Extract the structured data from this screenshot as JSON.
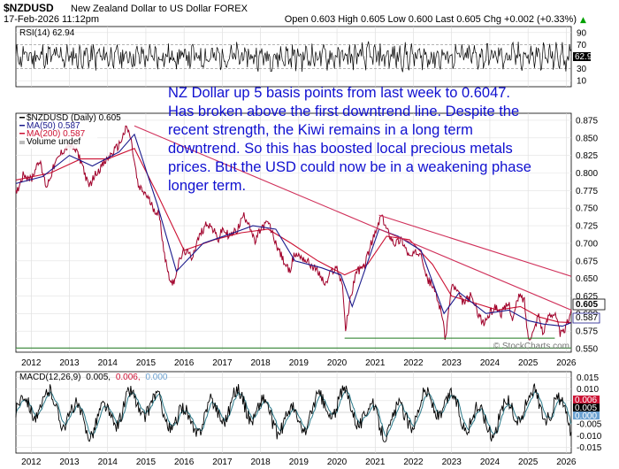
{
  "header": {
    "symbol": "$NZDUSD",
    "description": "New Zealand Dollar to US Dollar  FOREX",
    "date": "17-Feb-2026 11:12pm",
    "ohlc": "Open 0.603  High 0.605  Low 0.600  Last 0.605  Chg +0.002 (+0.33%)",
    "chg_arrow": "▲"
  },
  "rsi": {
    "label": "RSI(14) 62.94",
    "value": 62.94,
    "ticks": [
      "90",
      "70",
      "50",
      "30",
      "10"
    ],
    "ylim": [
      0,
      100
    ],
    "current_label": "62.94",
    "line_color": "#000000"
  },
  "annotation_lines": [
    "NZ Dollar up 5 basis points from last week to 0.6047.",
    "Has broken above the first downtrend line. Despite the",
    "recent strength, the Kiwi remains in a long term",
    "downtrend. So this has boosted local precious metals",
    "prices. But the USD could now be in a weakening phase",
    "longer term."
  ],
  "legend": {
    "price": "$NZDUSD (Daily) 0.605",
    "ma50": "MA(50) 0.587",
    "ma200": "MA(200) 0.587",
    "volume": "Volume undef"
  },
  "price_axis": {
    "ticks": [
      "0.875",
      "0.850",
      "0.825",
      "0.800",
      "0.775",
      "0.750",
      "0.725",
      "0.700",
      "0.675",
      "0.650",
      "0.625",
      "0.600",
      "0.575",
      "0.550"
    ],
    "badges": [
      "0.605",
      "0.587"
    ]
  },
  "years": [
    "2012",
    "2013",
    "2014",
    "2015",
    "2016",
    "2017",
    "2018",
    "2019",
    "2020",
    "2021",
    "2022",
    "2023",
    "2024",
    "2025",
    "2026"
  ],
  "watermark": "© StockCharts.com",
  "macd": {
    "label_prefix": "MACD(12,26,9)",
    "v1": "0.005,",
    "v2": "0.006,",
    "v3": "0.000",
    "ticks": [
      "0.015",
      "0.010",
      "0.005",
      "0.000",
      "-0.005",
      "-0.010",
      "-0.015"
    ],
    "badges": [
      "0.006",
      "0.005",
      "0.000"
    ]
  },
  "colors": {
    "price": "#a0002a",
    "ma50": "#1a1a8c",
    "ma200": "#cc1133",
    "trendline": "#d0305a",
    "support": "#1f7a1f",
    "note": "#1010d0",
    "macd_signal": "#2a7a8a"
  },
  "chart_data": {
    "type": "line",
    "title": "$NZDUSD  New Zealand Dollar to US Dollar  FOREX",
    "x_range": [
      2011.6,
      2026.13
    ],
    "y_range": [
      0.545,
      0.885
    ],
    "series": [
      {
        "name": "$NZDUSD (Daily)",
        "x": [
          2011.6,
          2011.8,
          2012.0,
          2012.2,
          2012.4,
          2012.6,
          2012.8,
          2013.0,
          2013.2,
          2013.35,
          2013.5,
          2013.7,
          2014.0,
          2014.3,
          2014.5,
          2014.6,
          2014.8,
          2015.0,
          2015.2,
          2015.35,
          2015.5,
          2015.6,
          2015.7,
          2015.85,
          2016.0,
          2016.2,
          2016.4,
          2016.6,
          2016.75,
          2016.9,
          2017.0,
          2017.2,
          2017.4,
          2017.55,
          2017.7,
          2017.85,
          2018.0,
          2018.2,
          2018.4,
          2018.6,
          2018.75,
          2018.9,
          2019.1,
          2019.3,
          2019.5,
          2019.7,
          2019.85,
          2020.0,
          2020.15,
          2020.22,
          2020.35,
          2020.5,
          2020.7,
          2020.9,
          2021.05,
          2021.15,
          2021.3,
          2021.5,
          2021.7,
          2021.9,
          2022.05,
          2022.2,
          2022.35,
          2022.5,
          2022.6,
          2022.75,
          2022.83,
          2023.0,
          2023.1,
          2023.3,
          2023.5,
          2023.7,
          2023.83,
          2024.0,
          2024.15,
          2024.3,
          2024.5,
          2024.6,
          2024.75,
          2024.9,
          2025.0,
          2025.15,
          2025.27,
          2025.4,
          2025.55,
          2025.7,
          2025.85,
          2025.95,
          2026.05,
          2026.13
        ],
        "y": [
          0.77,
          0.8,
          0.79,
          0.82,
          0.78,
          0.81,
          0.83,
          0.84,
          0.83,
          0.81,
          0.78,
          0.8,
          0.82,
          0.84,
          0.865,
          0.85,
          0.78,
          0.77,
          0.75,
          0.74,
          0.68,
          0.655,
          0.64,
          0.67,
          0.69,
          0.68,
          0.71,
          0.73,
          0.72,
          0.705,
          0.72,
          0.71,
          0.72,
          0.74,
          0.73,
          0.7,
          0.72,
          0.73,
          0.7,
          0.675,
          0.66,
          0.685,
          0.68,
          0.67,
          0.66,
          0.64,
          0.66,
          0.665,
          0.64,
          0.575,
          0.62,
          0.66,
          0.665,
          0.7,
          0.72,
          0.74,
          0.72,
          0.7,
          0.705,
          0.68,
          0.685,
          0.69,
          0.65,
          0.64,
          0.625,
          0.6,
          0.56,
          0.64,
          0.635,
          0.615,
          0.625,
          0.6,
          0.585,
          0.6,
          0.61,
          0.6,
          0.615,
          0.59,
          0.625,
          0.62,
          0.565,
          0.575,
          0.6,
          0.57,
          0.6,
          0.6,
          0.57,
          0.575,
          0.59,
          0.605
        ]
      },
      {
        "name": "MA(50)",
        "x": [
          2011.6,
          2012.3,
          2013.0,
          2013.6,
          2014.3,
          2014.7,
          2015.3,
          2015.8,
          2016.5,
          2017.3,
          2017.8,
          2018.4,
          2018.9,
          2019.6,
          2020.1,
          2020.4,
          2021.1,
          2021.6,
          2022.2,
          2022.8,
          2023.2,
          2023.9,
          2024.5,
          2025.0,
          2025.4,
          2025.9,
          2026.13
        ],
        "y": [
          0.785,
          0.795,
          0.825,
          0.81,
          0.83,
          0.855,
          0.755,
          0.66,
          0.7,
          0.715,
          0.725,
          0.72,
          0.675,
          0.665,
          0.655,
          0.61,
          0.72,
          0.71,
          0.69,
          0.6,
          0.63,
          0.6,
          0.605,
          0.59,
          0.585,
          0.582,
          0.587
        ]
      },
      {
        "name": "MA(200)",
        "x": [
          2011.6,
          2012.5,
          2013.3,
          2014.0,
          2014.7,
          2015.3,
          2016.0,
          2016.8,
          2017.5,
          2018.2,
          2018.8,
          2019.5,
          2020.2,
          2020.8,
          2021.3,
          2021.9,
          2022.5,
          2023.0,
          2023.6,
          2024.2,
          2024.8,
          2025.3,
          2025.8,
          2026.13
        ],
        "y": [
          0.79,
          0.8,
          0.82,
          0.82,
          0.835,
          0.77,
          0.69,
          0.705,
          0.715,
          0.72,
          0.7,
          0.675,
          0.655,
          0.67,
          0.71,
          0.705,
          0.67,
          0.625,
          0.615,
          0.605,
          0.61,
          0.595,
          0.588,
          0.587
        ]
      }
    ],
    "trendlines": [
      {
        "name": "long downtrend",
        "x": [
          2014.7,
          2026.13
        ],
        "y": [
          0.867,
          0.605
        ]
      },
      {
        "name": "first downtrend",
        "x": [
          2021.1,
          2026.13
        ],
        "y": [
          0.74,
          0.653
        ]
      },
      {
        "name": "support",
        "x": [
          2020.2,
          2025.7
        ],
        "y": [
          0.565,
          0.565
        ]
      },
      {
        "name": "support low",
        "x": [
          2011.6,
          2026.13
        ],
        "y": [
          0.551,
          0.551
        ]
      }
    ]
  }
}
